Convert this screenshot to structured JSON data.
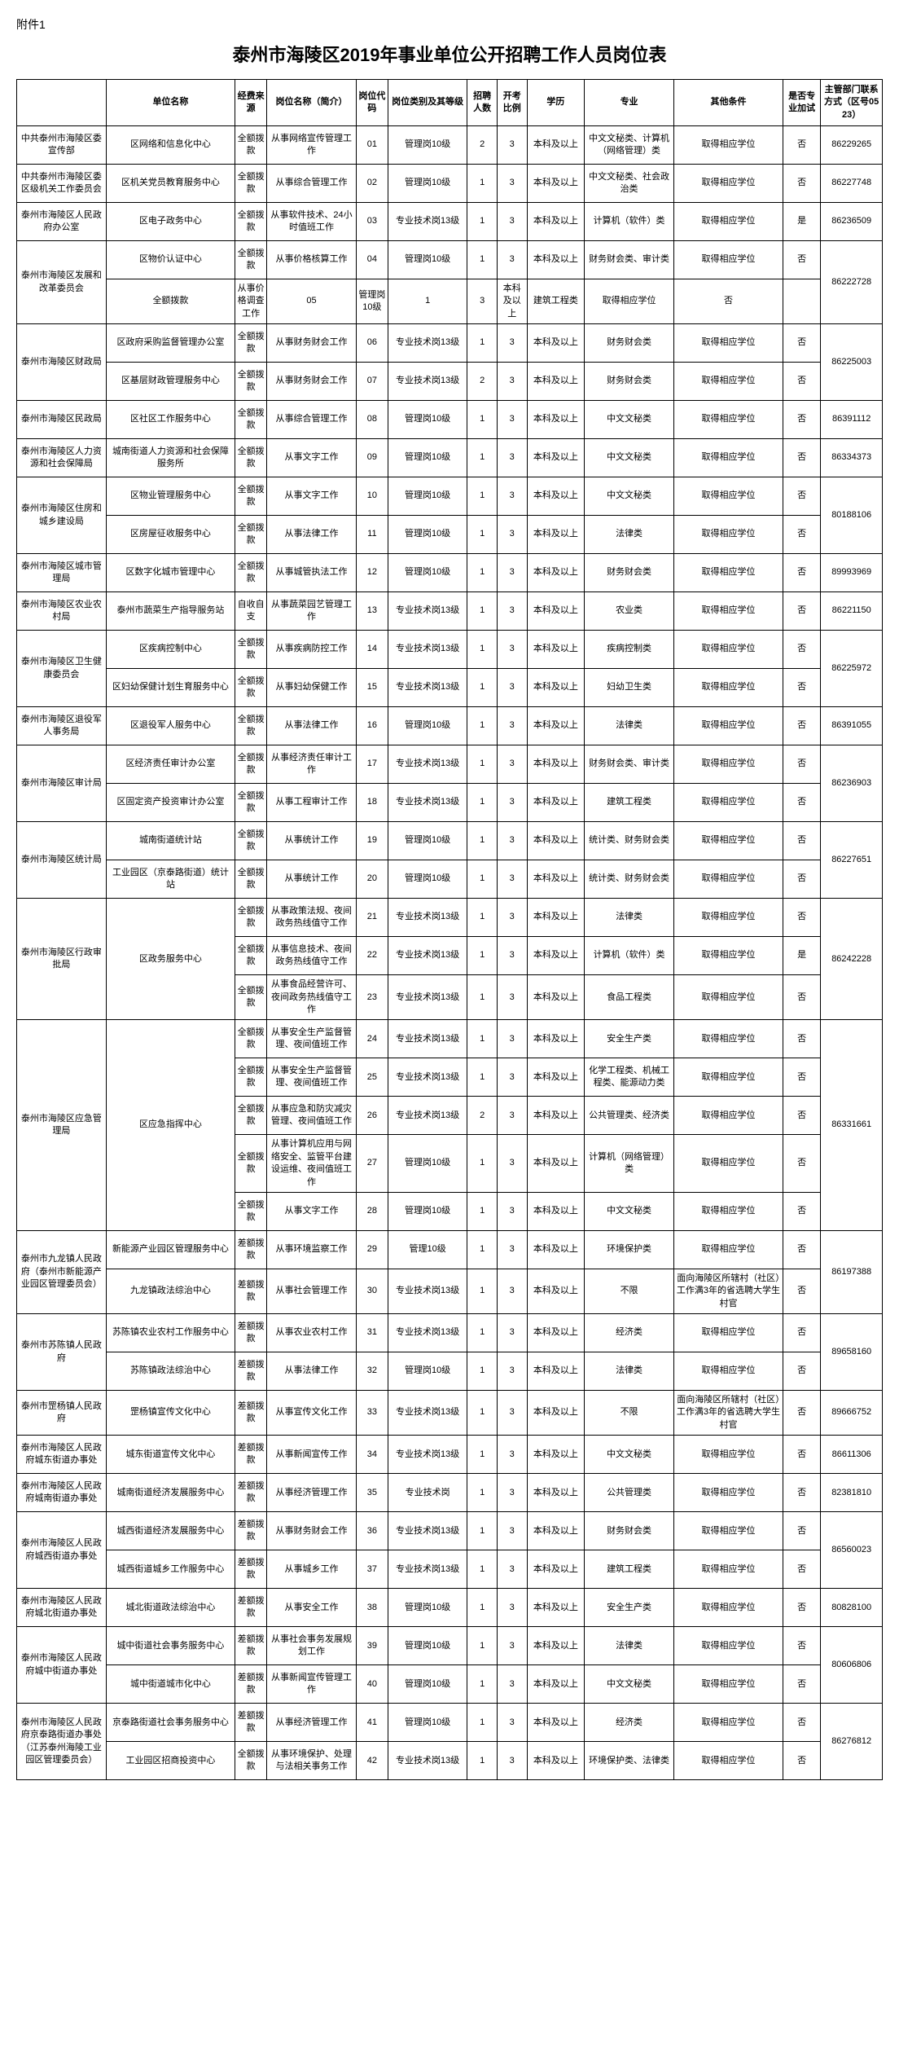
{
  "attachment": "附件1",
  "title": "泰州市海陵区2019年事业单位公开招聘工作人员岗位表",
  "headers": {
    "dept": "",
    "unit": "单位名称",
    "fund": "经费来源",
    "job": "岗位名称（简介）",
    "code": "岗位代码",
    "type": "岗位类别及其等级",
    "num": "招聘人数",
    "ratio": "开考比例",
    "edu": "学历",
    "major": "专业",
    "other": "其他条件",
    "exam": "是否专业加试",
    "phone": "主管部门联系方式（区号0523）"
  },
  "rows": [
    {
      "dept": "中共泰州市海陵区委宣传部",
      "unit": "区网络和信息化中心",
      "fund": "全额拨款",
      "job": "从事网络宣传管理工作",
      "code": "01",
      "type": "管理岗10级",
      "num": "2",
      "ratio": "3",
      "edu": "本科及以上",
      "major": "中文文秘类、计算机（网络管理）类",
      "other": "取得相应学位",
      "exam": "否",
      "phone": "86229265",
      "deptSpan": 1,
      "phoneSpan": 1
    },
    {
      "dept": "中共泰州市海陵区委区级机关工作委员会",
      "unit": "区机关党员教育服务中心",
      "fund": "全额拨款",
      "job": "从事综合管理工作",
      "code": "02",
      "type": "管理岗10级",
      "num": "1",
      "ratio": "3",
      "edu": "本科及以上",
      "major": "中文文秘类、社会政治类",
      "other": "取得相应学位",
      "exam": "否",
      "phone": "86227748",
      "deptSpan": 1,
      "phoneSpan": 1
    },
    {
      "dept": "泰州市海陵区人民政府办公室",
      "unit": "区电子政务中心",
      "fund": "全额拨款",
      "job": "从事软件技术、24小时值班工作",
      "code": "03",
      "type": "专业技术岗13级",
      "num": "1",
      "ratio": "3",
      "edu": "本科及以上",
      "major": "计算机（软件）类",
      "other": "取得相应学位",
      "exam": "是",
      "phone": "86236509",
      "deptSpan": 1,
      "phoneSpan": 1
    },
    {
      "dept": "泰州市海陵区发展和改革委员会",
      "unit": "区物价认证中心",
      "fund": "全额拨款",
      "job": "从事价格核算工作",
      "code": "04",
      "type": "管理岗10级",
      "num": "1",
      "ratio": "3",
      "edu": "本科及以上",
      "major": "财务财会类、审计类",
      "other": "取得相应学位",
      "exam": "否",
      "phone": "86222728",
      "deptSpan": 2,
      "phoneSpan": 2
    },
    {
      "dept": "",
      "unit": "",
      "fund": "全额拨款",
      "job": "从事价格调查工作",
      "code": "05",
      "type": "管理岗10级",
      "num": "1",
      "ratio": "3",
      "edu": "本科及以上",
      "major": "建筑工程类",
      "other": "取得相应学位",
      "exam": "否",
      "phone": "",
      "unitSame": true
    },
    {
      "dept": "泰州市海陵区财政局",
      "unit": "区政府采购监督管理办公室",
      "fund": "全额拨款",
      "job": "从事财务财会工作",
      "code": "06",
      "type": "专业技术岗13级",
      "num": "1",
      "ratio": "3",
      "edu": "本科及以上",
      "major": "财务财会类",
      "other": "取得相应学位",
      "exam": "否",
      "phone": "86225003",
      "deptSpan": 2,
      "phoneSpan": 2
    },
    {
      "dept": "",
      "unit": "区基层财政管理服务中心",
      "fund": "全额拨款",
      "job": "从事财务财会工作",
      "code": "07",
      "type": "专业技术岗13级",
      "num": "2",
      "ratio": "3",
      "edu": "本科及以上",
      "major": "财务财会类",
      "other": "取得相应学位",
      "exam": "否",
      "phone": ""
    },
    {
      "dept": "泰州市海陵区民政局",
      "unit": "区社区工作服务中心",
      "fund": "全额拨款",
      "job": "从事综合管理工作",
      "code": "08",
      "type": "管理岗10级",
      "num": "1",
      "ratio": "3",
      "edu": "本科及以上",
      "major": "中文文秘类",
      "other": "取得相应学位",
      "exam": "否",
      "phone": "86391112",
      "deptSpan": 1,
      "phoneSpan": 1
    },
    {
      "dept": "泰州市海陵区人力资源和社会保障局",
      "unit": "城南街道人力资源和社会保障服务所",
      "fund": "全额拨款",
      "job": "从事文字工作",
      "code": "09",
      "type": "管理岗10级",
      "num": "1",
      "ratio": "3",
      "edu": "本科及以上",
      "major": "中文文秘类",
      "other": "取得相应学位",
      "exam": "否",
      "phone": "86334373",
      "deptSpan": 1,
      "phoneSpan": 1
    },
    {
      "dept": "泰州市海陵区住房和城乡建设局",
      "unit": "区物业管理服务中心",
      "fund": "全额拨款",
      "job": "从事文字工作",
      "code": "10",
      "type": "管理岗10级",
      "num": "1",
      "ratio": "3",
      "edu": "本科及以上",
      "major": "中文文秘类",
      "other": "取得相应学位",
      "exam": "否",
      "phone": "80188106",
      "deptSpan": 2,
      "phoneSpan": 2
    },
    {
      "dept": "",
      "unit": "区房屋征收服务中心",
      "fund": "全额拨款",
      "job": "从事法律工作",
      "code": "11",
      "type": "管理岗10级",
      "num": "1",
      "ratio": "3",
      "edu": "本科及以上",
      "major": "法律类",
      "other": "取得相应学位",
      "exam": "否",
      "phone": ""
    },
    {
      "dept": "泰州市海陵区城市管理局",
      "unit": "区数字化城市管理中心",
      "fund": "全额拨款",
      "job": "从事城管执法工作",
      "code": "12",
      "type": "管理岗10级",
      "num": "1",
      "ratio": "3",
      "edu": "本科及以上",
      "major": "财务财会类",
      "other": "取得相应学位",
      "exam": "否",
      "phone": "89993969",
      "deptSpan": 1,
      "phoneSpan": 1
    },
    {
      "dept": "泰州市海陵区农业农村局",
      "unit": "泰州市蔬菜生产指导服务站",
      "fund": "自收自支",
      "job": "从事蔬菜园艺管理工作",
      "code": "13",
      "type": "专业技术岗13级",
      "num": "1",
      "ratio": "3",
      "edu": "本科及以上",
      "major": "农业类",
      "other": "取得相应学位",
      "exam": "否",
      "phone": "86221150",
      "deptSpan": 1,
      "phoneSpan": 1
    },
    {
      "dept": "泰州市海陵区卫生健康委员会",
      "unit": "区疾病控制中心",
      "fund": "全额拨款",
      "job": "从事疾病防控工作",
      "code": "14",
      "type": "专业技术岗13级",
      "num": "1",
      "ratio": "3",
      "edu": "本科及以上",
      "major": "疾病控制类",
      "other": "取得相应学位",
      "exam": "否",
      "phone": "86225972",
      "deptSpan": 2,
      "phoneSpan": 2
    },
    {
      "dept": "",
      "unit": "区妇幼保健计划生育服务中心",
      "fund": "全额拨款",
      "job": "从事妇幼保健工作",
      "code": "15",
      "type": "专业技术岗13级",
      "num": "1",
      "ratio": "3",
      "edu": "本科及以上",
      "major": "妇幼卫生类",
      "other": "取得相应学位",
      "exam": "否",
      "phone": ""
    },
    {
      "dept": "泰州市海陵区退役军人事务局",
      "unit": "区退役军人服务中心",
      "fund": "全额拨款",
      "job": "从事法律工作",
      "code": "16",
      "type": "管理岗10级",
      "num": "1",
      "ratio": "3",
      "edu": "本科及以上",
      "major": "法律类",
      "other": "取得相应学位",
      "exam": "否",
      "phone": "86391055",
      "deptSpan": 1,
      "phoneSpan": 1
    },
    {
      "dept": "泰州市海陵区审计局",
      "unit": "区经济责任审计办公室",
      "fund": "全额拨款",
      "job": "从事经济责任审计工作",
      "code": "17",
      "type": "专业技术岗13级",
      "num": "1",
      "ratio": "3",
      "edu": "本科及以上",
      "major": "财务财会类、审计类",
      "other": "取得相应学位",
      "exam": "否",
      "phone": "86236903",
      "deptSpan": 2,
      "phoneSpan": 2
    },
    {
      "dept": "",
      "unit": "区固定资产投资审计办公室",
      "fund": "全额拨款",
      "job": "从事工程审计工作",
      "code": "18",
      "type": "专业技术岗13级",
      "num": "1",
      "ratio": "3",
      "edu": "本科及以上",
      "major": "建筑工程类",
      "other": "取得相应学位",
      "exam": "否",
      "phone": ""
    },
    {
      "dept": "泰州市海陵区统计局",
      "unit": "城南街道统计站",
      "fund": "全额拨款",
      "job": "从事统计工作",
      "code": "19",
      "type": "管理岗10级",
      "num": "1",
      "ratio": "3",
      "edu": "本科及以上",
      "major": "统计类、财务财会类",
      "other": "取得相应学位",
      "exam": "否",
      "phone": "86227651",
      "deptSpan": 2,
      "phoneSpan": 2
    },
    {
      "dept": "",
      "unit": "工业园区（京泰路街道）统计站",
      "fund": "全额拨款",
      "job": "从事统计工作",
      "code": "20",
      "type": "管理岗10级",
      "num": "1",
      "ratio": "3",
      "edu": "本科及以上",
      "major": "统计类、财务财会类",
      "other": "取得相应学位",
      "exam": "否",
      "phone": ""
    },
    {
      "dept": "泰州市海陵区行政审批局",
      "unit": "区政务服务中心",
      "fund": "全额拨款",
      "job": "从事政策法规、夜间政务热线值守工作",
      "code": "21",
      "type": "专业技术岗13级",
      "num": "1",
      "ratio": "3",
      "edu": "本科及以上",
      "major": "法律类",
      "other": "取得相应学位",
      "exam": "否",
      "phone": "86242228",
      "deptSpan": 3,
      "unitSpan": 3,
      "phoneSpan": 3
    },
    {
      "dept": "",
      "unit": "",
      "fund": "全额拨款",
      "job": "从事信息技术、夜间政务热线值守工作",
      "code": "22",
      "type": "专业技术岗13级",
      "num": "1",
      "ratio": "3",
      "edu": "本科及以上",
      "major": "计算机（软件）类",
      "other": "取得相应学位",
      "exam": "是",
      "phone": ""
    },
    {
      "dept": "",
      "unit": "",
      "fund": "全额拨款",
      "job": "从事食品经营许可、夜间政务热线值守工作",
      "code": "23",
      "type": "专业技术岗13级",
      "num": "1",
      "ratio": "3",
      "edu": "本科及以上",
      "major": "食品工程类",
      "other": "取得相应学位",
      "exam": "否",
      "phone": ""
    },
    {
      "dept": "泰州市海陵区应急管理局",
      "unit": "区应急指挥中心",
      "fund": "全额拨款",
      "job": "从事安全生产监督管理、夜间值班工作",
      "code": "24",
      "type": "专业技术岗13级",
      "num": "1",
      "ratio": "3",
      "edu": "本科及以上",
      "major": "安全生产类",
      "other": "取得相应学位",
      "exam": "否",
      "phone": "86331661",
      "deptSpan": 5,
      "unitSpan": 5,
      "phoneSpan": 5
    },
    {
      "dept": "",
      "unit": "",
      "fund": "全额拨款",
      "job": "从事安全生产监督管理、夜间值班工作",
      "code": "25",
      "type": "专业技术岗13级",
      "num": "1",
      "ratio": "3",
      "edu": "本科及以上",
      "major": "化学工程类、机械工程类、能源动力类",
      "other": "取得相应学位",
      "exam": "否",
      "phone": ""
    },
    {
      "dept": "",
      "unit": "",
      "fund": "全额拨款",
      "job": "从事应急和防灾减灾管理、夜间值班工作",
      "code": "26",
      "type": "专业技术岗13级",
      "num": "2",
      "ratio": "3",
      "edu": "本科及以上",
      "major": "公共管理类、经济类",
      "other": "取得相应学位",
      "exam": "否",
      "phone": ""
    },
    {
      "dept": "",
      "unit": "",
      "fund": "全额拨款",
      "job": "从事计算机应用与网络安全、监管平台建设运维、夜间值班工作",
      "code": "27",
      "type": "管理岗10级",
      "num": "1",
      "ratio": "3",
      "edu": "本科及以上",
      "major": "计算机（网络管理）类",
      "other": "取得相应学位",
      "exam": "否",
      "phone": ""
    },
    {
      "dept": "",
      "unit": "",
      "fund": "全额拨款",
      "job": "从事文字工作",
      "code": "28",
      "type": "管理岗10级",
      "num": "1",
      "ratio": "3",
      "edu": "本科及以上",
      "major": "中文文秘类",
      "other": "取得相应学位",
      "exam": "否",
      "phone": ""
    },
    {
      "dept": "泰州市九龙镇人民政府（泰州市新能源产业园区管理委员会）",
      "unit": "新能源产业园区管理服务中心",
      "fund": "差额拨款",
      "job": "从事环境监察工作",
      "code": "29",
      "type": "管理10级",
      "num": "1",
      "ratio": "3",
      "edu": "本科及以上",
      "major": "环境保护类",
      "other": "取得相应学位",
      "exam": "否",
      "phone": "86197388",
      "deptSpan": 2,
      "phoneSpan": 2
    },
    {
      "dept": "",
      "unit": "九龙镇政法综治中心",
      "fund": "差额拨款",
      "job": "从事社会管理工作",
      "code": "30",
      "type": "专业技术岗13级",
      "num": "1",
      "ratio": "3",
      "edu": "本科及以上",
      "major": "不限",
      "other": "面向海陵区所辖村（社区）工作满3年的省选聘大学生村官",
      "exam": "否",
      "phone": ""
    },
    {
      "dept": "泰州市苏陈镇人民政府",
      "unit": "苏陈镇农业农村工作服务中心",
      "fund": "差额拨款",
      "job": "从事农业农村工作",
      "code": "31",
      "type": "专业技术岗13级",
      "num": "1",
      "ratio": "3",
      "edu": "本科及以上",
      "major": "经济类",
      "other": "取得相应学位",
      "exam": "否",
      "phone": "89658160",
      "deptSpan": 2,
      "phoneSpan": 2
    },
    {
      "dept": "",
      "unit": "苏陈镇政法综治中心",
      "fund": "差额拨款",
      "job": "从事法律工作",
      "code": "32",
      "type": "管理岗10级",
      "num": "1",
      "ratio": "3",
      "edu": "本科及以上",
      "major": "法律类",
      "other": "取得相应学位",
      "exam": "否",
      "phone": ""
    },
    {
      "dept": "泰州市罡杨镇人民政府",
      "unit": "罡杨镇宣传文化中心",
      "fund": "差额拨款",
      "job": "从事宣传文化工作",
      "code": "33",
      "type": "专业技术岗13级",
      "num": "1",
      "ratio": "3",
      "edu": "本科及以上",
      "major": "不限",
      "other": "面向海陵区所辖村（社区）工作满3年的省选聘大学生村官",
      "exam": "否",
      "phone": "89666752",
      "deptSpan": 1,
      "phoneSpan": 1
    },
    {
      "dept": "泰州市海陵区人民政府城东街道办事处",
      "unit": "城东街道宣传文化中心",
      "fund": "差额拨款",
      "job": "从事新闻宣传工作",
      "code": "34",
      "type": "专业技术岗13级",
      "num": "1",
      "ratio": "3",
      "edu": "本科及以上",
      "major": "中文文秘类",
      "other": "取得相应学位",
      "exam": "否",
      "phone": "86611306",
      "deptSpan": 1,
      "phoneSpan": 1
    },
    {
      "dept": "泰州市海陵区人民政府城南街道办事处",
      "unit": "城南街道经济发展服务中心",
      "fund": "差额拨款",
      "job": "从事经济管理工作",
      "code": "35",
      "type": "专业技术岗",
      "num": "1",
      "ratio": "3",
      "edu": "本科及以上",
      "major": "公共管理类",
      "other": "取得相应学位",
      "exam": "否",
      "phone": "82381810",
      "deptSpan": 1,
      "phoneSpan": 1
    },
    {
      "dept": "泰州市海陵区人民政府城西街道办事处",
      "unit": "城西街道经济发展服务中心",
      "fund": "差额拨款",
      "job": "从事财务财会工作",
      "code": "36",
      "type": "专业技术岗13级",
      "num": "1",
      "ratio": "3",
      "edu": "本科及以上",
      "major": "财务财会类",
      "other": "取得相应学位",
      "exam": "否",
      "phone": "86560023",
      "deptSpan": 2,
      "phoneSpan": 2
    },
    {
      "dept": "",
      "unit": "城西街道城乡工作服务中心",
      "fund": "差额拨款",
      "job": "从事城乡工作",
      "code": "37",
      "type": "专业技术岗13级",
      "num": "1",
      "ratio": "3",
      "edu": "本科及以上",
      "major": "建筑工程类",
      "other": "取得相应学位",
      "exam": "否",
      "phone": ""
    },
    {
      "dept": "泰州市海陵区人民政府城北街道办事处",
      "unit": "城北街道政法综治中心",
      "fund": "差额拨款",
      "job": "从事安全工作",
      "code": "38",
      "type": "管理岗10级",
      "num": "1",
      "ratio": "3",
      "edu": "本科及以上",
      "major": "安全生产类",
      "other": "取得相应学位",
      "exam": "否",
      "phone": "80828100",
      "deptSpan": 1,
      "phoneSpan": 1
    },
    {
      "dept": "泰州市海陵区人民政府城中街道办事处",
      "unit": "城中街道社会事务服务中心",
      "fund": "差额拨款",
      "job": "从事社会事务发展规划工作",
      "code": "39",
      "type": "管理岗10级",
      "num": "1",
      "ratio": "3",
      "edu": "本科及以上",
      "major": "法律类",
      "other": "取得相应学位",
      "exam": "否",
      "phone": "80606806",
      "deptSpan": 2,
      "phoneSpan": 2
    },
    {
      "dept": "",
      "unit": "城中街道城市化中心",
      "fund": "差额拨款",
      "job": "从事新闻宣传管理工作",
      "code": "40",
      "type": "管理岗10级",
      "num": "1",
      "ratio": "3",
      "edu": "本科及以上",
      "major": "中文文秘类",
      "other": "取得相应学位",
      "exam": "否",
      "phone": ""
    },
    {
      "dept": "泰州市海陵区人民政府京泰路街道办事处（江苏泰州海陵工业园区管理委员会）",
      "unit": "京泰路街道社会事务服务中心",
      "fund": "差额拨款",
      "job": "从事经济管理工作",
      "code": "41",
      "type": "管理岗10级",
      "num": "1",
      "ratio": "3",
      "edu": "本科及以上",
      "major": "经济类",
      "other": "取得相应学位",
      "exam": "否",
      "phone": "86276812",
      "deptSpan": 2,
      "phoneSpan": 2
    },
    {
      "dept": "",
      "unit": "工业园区招商投资中心",
      "fund": "全额拨款",
      "job": "从事环境保护、处理与法相关事务工作",
      "code": "42",
      "type": "专业技术岗13级",
      "num": "1",
      "ratio": "3",
      "edu": "本科及以上",
      "major": "环境保护类、法律类",
      "other": "取得相应学位",
      "exam": "否",
      "phone": ""
    }
  ]
}
